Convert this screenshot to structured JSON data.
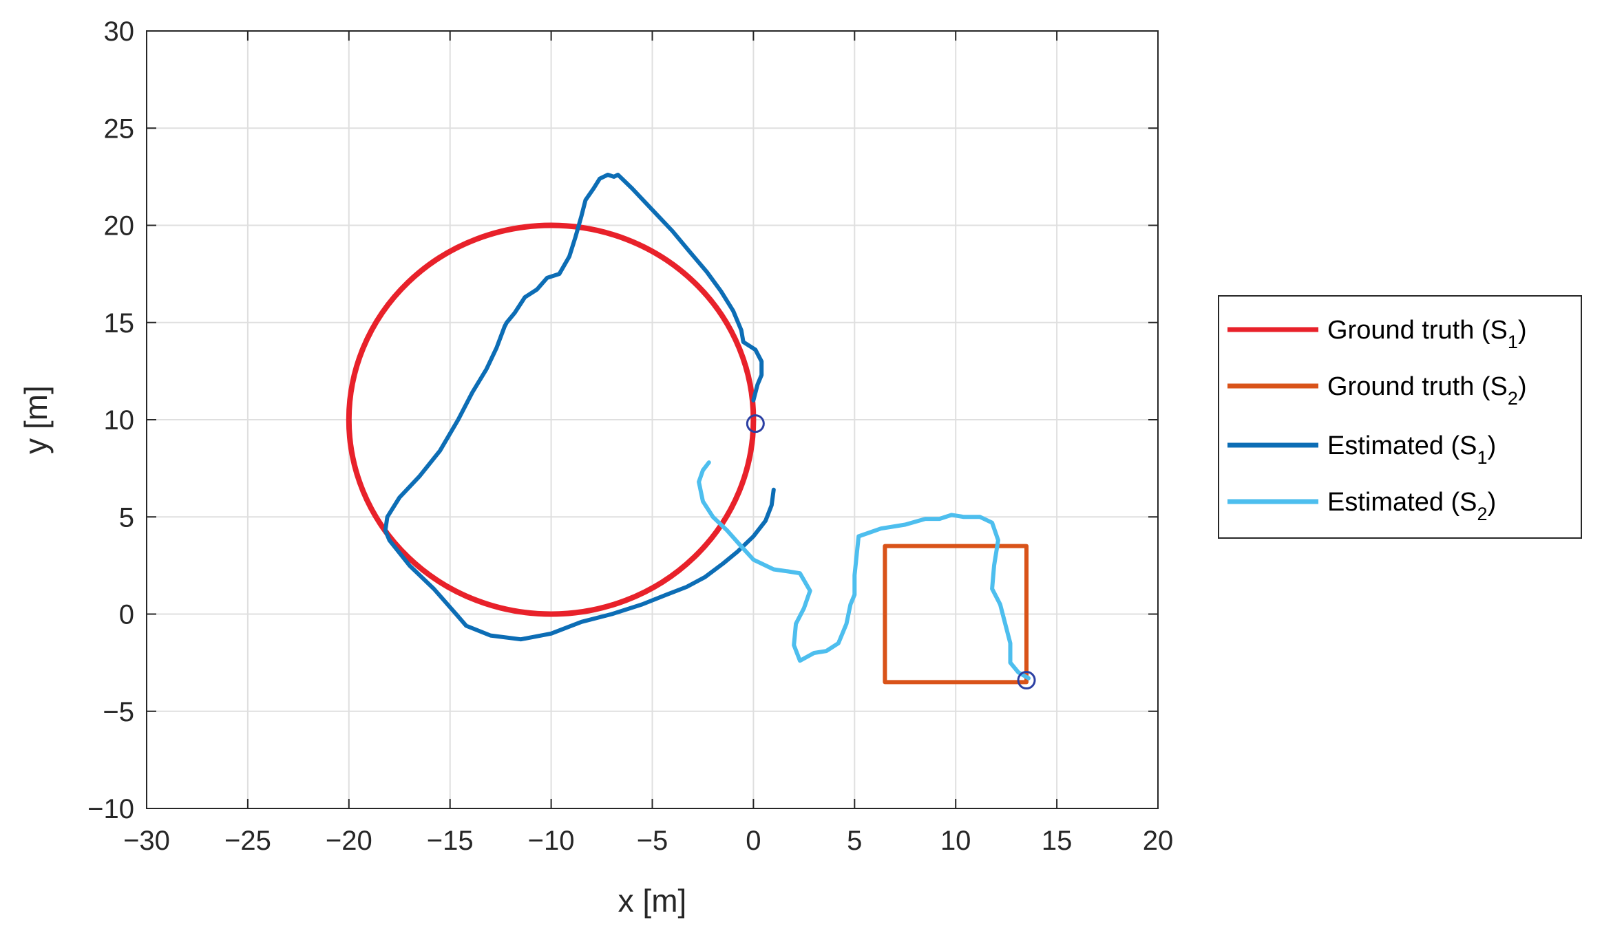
{
  "chart_data": {
    "type": "line",
    "xlabel": "x [m]",
    "ylabel": "y [m]",
    "xlim": [
      -30,
      20
    ],
    "ylim": [
      -10,
      30
    ],
    "xticks": [
      -30,
      -25,
      -20,
      -15,
      -10,
      -5,
      0,
      5,
      10,
      15,
      20
    ],
    "yticks": [
      -10,
      -5,
      0,
      5,
      10,
      15,
      20,
      25,
      30
    ],
    "xtick_labels": [
      "−30",
      "−25",
      "−20",
      "−15",
      "−10",
      "−5",
      "0",
      "5",
      "10",
      "15",
      "20"
    ],
    "ytick_labels": [
      "−10",
      "−5",
      "0",
      "5",
      "10",
      "15",
      "20",
      "25",
      "30"
    ],
    "grid": true,
    "legend_position": "outside-right",
    "series": [
      {
        "name": "Ground truth (S1)",
        "legend_main": "Ground truth (S",
        "legend_sub": "1",
        "legend_close": ")",
        "color": "#e8212a",
        "kind": "circle",
        "center": [
          -10,
          10
        ],
        "radius": 10
      },
      {
        "name": "Ground truth (S2)",
        "legend_main": "Ground truth (S",
        "legend_sub": "2",
        "legend_close": ")",
        "color": "#d95319",
        "x": [
          6.5,
          13.5,
          13.5,
          6.5,
          6.5
        ],
        "y": [
          3.5,
          3.5,
          -3.5,
          -3.5,
          3.5
        ]
      },
      {
        "name": "Estimated (S1)",
        "legend_main": "Estimated (S",
        "legend_sub": "1",
        "legend_close": ")",
        "color": "#0c6db5",
        "x": [
          0.0,
          0.2,
          0.4,
          0.4,
          0.1,
          -0.5,
          -0.6,
          -1.0,
          -1.6,
          -2.3,
          -3.2,
          -4.0,
          -5.0,
          -6.0,
          -6.7,
          -6.9,
          -7.2,
          -7.6,
          -7.9,
          -8.3,
          -8.5,
          -8.8,
          -9.1,
          -9.6,
          -10.2,
          -10.7,
          -11.3,
          -11.8,
          -12.2,
          -12.3,
          -12.7,
          -13.2,
          -13.9,
          -14.6,
          -15.5,
          -16.5,
          -17.5,
          -18.1,
          -18.2,
          -18.0,
          -17.0,
          -15.8,
          -14.7,
          -14.2,
          -13.0,
          -11.5,
          -10.0,
          -8.5,
          -7.0,
          -5.5,
          -4.3,
          -3.3,
          -2.4,
          -1.5,
          -0.8,
          0.0,
          0.6,
          0.9,
          1.0
        ],
        "y": [
          11.0,
          11.8,
          12.3,
          13.0,
          13.6,
          14.0,
          14.6,
          15.6,
          16.6,
          17.6,
          18.7,
          19.7,
          20.8,
          21.9,
          22.6,
          22.5,
          22.6,
          22.4,
          21.9,
          21.3,
          20.5,
          19.4,
          18.4,
          17.5,
          17.3,
          16.7,
          16.3,
          15.5,
          15.0,
          14.8,
          13.7,
          12.6,
          11.4,
          10.0,
          8.4,
          7.1,
          6.0,
          5.0,
          4.3,
          3.8,
          2.5,
          1.3,
          0.0,
          -0.6,
          -1.1,
          -1.3,
          -1.0,
          -0.4,
          0.0,
          0.5,
          1.0,
          1.4,
          1.9,
          2.6,
          3.2,
          4.0,
          4.8,
          5.6,
          6.4
        ]
      },
      {
        "name": "Estimated (S2)",
        "legend_main": "Estimated (S",
        "legend_sub": "2",
        "legend_close": ")",
        "color": "#4dbeee",
        "x": [
          13.6,
          13.1,
          12.7,
          12.7,
          12.2,
          11.8,
          11.9,
          12.1,
          11.8,
          11.2,
          10.4,
          9.8,
          9.2,
          8.5,
          7.5,
          6.3,
          5.2,
          5.0,
          5.0,
          4.8,
          4.6,
          4.2,
          3.6,
          3.0,
          2.3,
          2.0,
          2.1,
          2.5,
          2.7,
          2.8,
          2.3,
          1.7,
          1.0,
          0.0,
          -0.7,
          -1.3,
          -2.0,
          -2.5,
          -2.7,
          -2.5,
          -2.2
        ],
        "y": [
          -3.3,
          -3.0,
          -2.5,
          -1.5,
          0.5,
          1.3,
          2.5,
          3.8,
          4.7,
          5.0,
          5.0,
          5.1,
          4.9,
          4.9,
          4.6,
          4.4,
          4.0,
          2.0,
          1.0,
          0.5,
          -0.5,
          -1.5,
          -1.9,
          -2.0,
          -2.4,
          -1.6,
          -0.5,
          0.3,
          0.9,
          1.2,
          2.1,
          2.2,
          2.3,
          2.8,
          3.6,
          4.3,
          5.0,
          5.8,
          6.8,
          7.4,
          7.8
        ]
      }
    ],
    "markers": [
      {
        "color": "#2b3fa3",
        "x": 0.1,
        "y": 9.8
      },
      {
        "color": "#2b3fa3",
        "x": 13.5,
        "y": -3.4
      }
    ]
  }
}
